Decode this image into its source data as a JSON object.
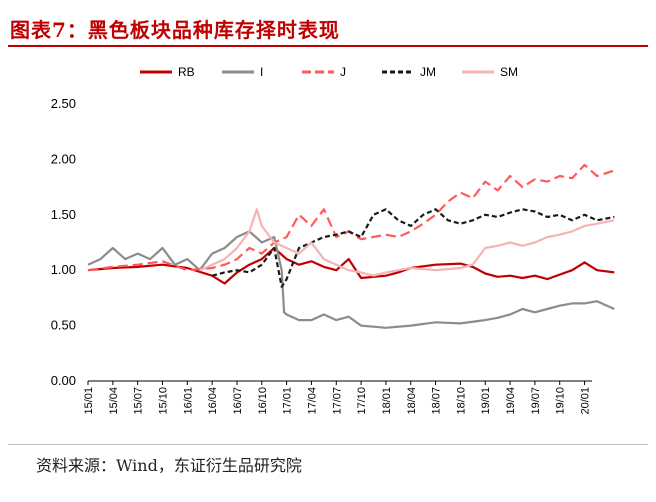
{
  "header": {
    "title": "图表7：黑色板块品种库存择时表现"
  },
  "footer": {
    "source": "资料来源：Wind，东证衍生品研究院"
  },
  "colors": {
    "RB": "#c00000",
    "I": "#8c8c8c",
    "J": "#ff5a5a",
    "JM": "#1a1a1a",
    "SM": "#f7b3b3",
    "accent": "#c00000"
  },
  "chart_data": {
    "type": "line",
    "title": "",
    "xlabel": "",
    "ylabel": "",
    "ylim": [
      0,
      2.5
    ],
    "yticks": [
      "0.00",
      "0.50",
      "1.00",
      "1.50",
      "2.00",
      "2.50"
    ],
    "xticks": [
      "15/01",
      "15/04",
      "15/07",
      "15/10",
      "16/01",
      "16/04",
      "16/07",
      "16/10",
      "17/01",
      "17/04",
      "17/07",
      "17/10",
      "18/01",
      "18/04",
      "18/07",
      "18/10",
      "19/01",
      "19/04",
      "19/07",
      "19/10",
      "20/01"
    ],
    "grid": false,
    "legend_position": "top",
    "series": [
      {
        "name": "RB",
        "style": "solid",
        "points": [
          [
            0,
            1.0
          ],
          [
            1,
            1.02
          ],
          [
            2,
            1.03
          ],
          [
            3,
            1.05
          ],
          [
            4,
            1.02
          ],
          [
            5,
            0.95
          ],
          [
            5.5,
            0.88
          ],
          [
            6,
            0.98
          ],
          [
            6.5,
            1.05
          ],
          [
            7,
            1.1
          ],
          [
            7.5,
            1.2
          ],
          [
            8,
            1.1
          ],
          [
            8.5,
            1.05
          ],
          [
            9,
            1.08
          ],
          [
            9.5,
            1.03
          ],
          [
            10,
            1.0
          ],
          [
            10.5,
            1.1
          ],
          [
            11,
            0.93
          ],
          [
            12,
            0.95
          ],
          [
            12.5,
            0.98
          ],
          [
            13,
            1.02
          ],
          [
            14,
            1.05
          ],
          [
            15,
            1.06
          ],
          [
            15.5,
            1.03
          ],
          [
            16,
            0.97
          ],
          [
            16.5,
            0.94
          ],
          [
            17,
            0.95
          ],
          [
            17.5,
            0.93
          ],
          [
            18,
            0.95
          ],
          [
            18.5,
            0.92
          ],
          [
            19,
            0.96
          ],
          [
            19.5,
            1.0
          ],
          [
            20,
            1.07
          ],
          [
            20.5,
            1.0
          ],
          [
            21.2,
            0.98
          ]
        ]
      },
      {
        "name": "I",
        "style": "solid",
        "points": [
          [
            0,
            1.05
          ],
          [
            0.5,
            1.1
          ],
          [
            1,
            1.2
          ],
          [
            1.5,
            1.1
          ],
          [
            2,
            1.15
          ],
          [
            2.5,
            1.1
          ],
          [
            3,
            1.2
          ],
          [
            3.5,
            1.05
          ],
          [
            4,
            1.1
          ],
          [
            4.5,
            1.0
          ],
          [
            5,
            1.15
          ],
          [
            5.5,
            1.2
          ],
          [
            6,
            1.3
          ],
          [
            6.5,
            1.35
          ],
          [
            7,
            1.25
          ],
          [
            7.5,
            1.3
          ],
          [
            7.8,
            1.0
          ],
          [
            7.9,
            0.62
          ],
          [
            8,
            0.6
          ],
          [
            8.5,
            0.55
          ],
          [
            9,
            0.55
          ],
          [
            9.5,
            0.6
          ],
          [
            10,
            0.55
          ],
          [
            10.5,
            0.58
          ],
          [
            11,
            0.5
          ],
          [
            12,
            0.48
          ],
          [
            13,
            0.5
          ],
          [
            14,
            0.53
          ],
          [
            15,
            0.52
          ],
          [
            16,
            0.55
          ],
          [
            16.5,
            0.57
          ],
          [
            17,
            0.6
          ],
          [
            17.5,
            0.65
          ],
          [
            18,
            0.62
          ],
          [
            18.5,
            0.65
          ],
          [
            19,
            0.68
          ],
          [
            19.5,
            0.7
          ],
          [
            20,
            0.7
          ],
          [
            20.5,
            0.72
          ],
          [
            21.2,
            0.65
          ]
        ]
      },
      {
        "name": "J",
        "style": "dashed",
        "points": [
          [
            0,
            1.0
          ],
          [
            1,
            1.03
          ],
          [
            2,
            1.05
          ],
          [
            3,
            1.08
          ],
          [
            4,
            1.0
          ],
          [
            5,
            1.02
          ],
          [
            5.5,
            1.05
          ],
          [
            6,
            1.1
          ],
          [
            6.5,
            1.2
          ],
          [
            7,
            1.15
          ],
          [
            7.5,
            1.25
          ],
          [
            8,
            1.3
          ],
          [
            8.5,
            1.5
          ],
          [
            9,
            1.4
          ],
          [
            9.5,
            1.55
          ],
          [
            10,
            1.3
          ],
          [
            10.5,
            1.35
          ],
          [
            11,
            1.28
          ],
          [
            12,
            1.32
          ],
          [
            12.5,
            1.3
          ],
          [
            13,
            1.35
          ],
          [
            13.5,
            1.42
          ],
          [
            14,
            1.5
          ],
          [
            14.5,
            1.62
          ],
          [
            15,
            1.7
          ],
          [
            15.5,
            1.65
          ],
          [
            16,
            1.8
          ],
          [
            16.5,
            1.72
          ],
          [
            17,
            1.85
          ],
          [
            17.5,
            1.75
          ],
          [
            18,
            1.82
          ],
          [
            18.5,
            1.8
          ],
          [
            19,
            1.85
          ],
          [
            19.5,
            1.83
          ],
          [
            20,
            1.95
          ],
          [
            20.5,
            1.85
          ],
          [
            21.2,
            1.9
          ]
        ]
      },
      {
        "name": "JM",
        "style": "dashed",
        "points": [
          [
            5,
            0.95
          ],
          [
            5.5,
            0.98
          ],
          [
            6,
            1.0
          ],
          [
            6.5,
            0.98
          ],
          [
            7,
            1.05
          ],
          [
            7.5,
            1.2
          ],
          [
            7.8,
            0.85
          ],
          [
            8,
            0.92
          ],
          [
            8.5,
            1.2
          ],
          [
            9,
            1.25
          ],
          [
            9.5,
            1.3
          ],
          [
            10,
            1.32
          ],
          [
            10.5,
            1.35
          ],
          [
            11,
            1.3
          ],
          [
            11.5,
            1.5
          ],
          [
            12,
            1.55
          ],
          [
            12.5,
            1.45
          ],
          [
            13,
            1.4
          ],
          [
            13.5,
            1.5
          ],
          [
            14,
            1.55
          ],
          [
            14.5,
            1.45
          ],
          [
            15,
            1.42
          ],
          [
            15.5,
            1.45
          ],
          [
            16,
            1.5
          ],
          [
            16.5,
            1.48
          ],
          [
            17,
            1.52
          ],
          [
            17.5,
            1.55
          ],
          [
            18,
            1.53
          ],
          [
            18.5,
            1.48
          ],
          [
            19,
            1.5
          ],
          [
            19.5,
            1.45
          ],
          [
            20,
            1.5
          ],
          [
            20.5,
            1.45
          ],
          [
            21.2,
            1.48
          ]
        ]
      },
      {
        "name": "SM",
        "style": "solid",
        "points": [
          [
            4.5,
            1.0
          ],
          [
            5,
            1.05
          ],
          [
            5.5,
            1.1
          ],
          [
            6,
            1.2
          ],
          [
            6.5,
            1.35
          ],
          [
            6.8,
            1.55
          ],
          [
            7,
            1.4
          ],
          [
            7.5,
            1.25
          ],
          [
            8,
            1.2
          ],
          [
            8.5,
            1.15
          ],
          [
            9,
            1.25
          ],
          [
            9.5,
            1.1
          ],
          [
            10,
            1.05
          ],
          [
            10.5,
            1.0
          ],
          [
            11,
            0.98
          ],
          [
            11.5,
            0.95
          ],
          [
            12,
            0.98
          ],
          [
            12.5,
            1.0
          ],
          [
            13,
            1.02
          ],
          [
            14,
            1.0
          ],
          [
            15,
            1.02
          ],
          [
            15.5,
            1.05
          ],
          [
            16,
            1.2
          ],
          [
            16.5,
            1.22
          ],
          [
            17,
            1.25
          ],
          [
            17.5,
            1.22
          ],
          [
            18,
            1.25
          ],
          [
            18.5,
            1.3
          ],
          [
            19,
            1.32
          ],
          [
            19.5,
            1.35
          ],
          [
            20,
            1.4
          ],
          [
            20.5,
            1.42
          ],
          [
            21.2,
            1.45
          ]
        ]
      }
    ]
  }
}
